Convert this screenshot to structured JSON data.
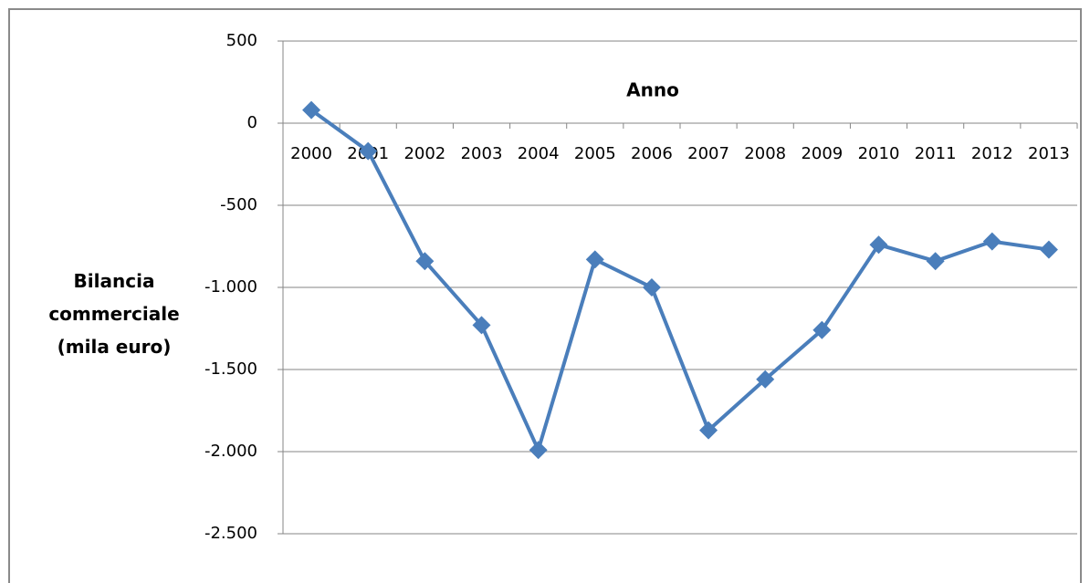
{
  "chart_data": {
    "type": "line",
    "x_label": "Anno",
    "y_label": "Bilancia commerciale (mila euro)",
    "categories": [
      "2000",
      "2001",
      "2002",
      "2003",
      "2004",
      "2005",
      "2006",
      "2007",
      "2008",
      "2009",
      "2010",
      "2011",
      "2012",
      "2013"
    ],
    "values": [
      80,
      -170,
      -840,
      -1230,
      -1990,
      -830,
      -1000,
      -1870,
      -1560,
      -1260,
      -740,
      -840,
      -720,
      -770
    ],
    "color": "#4a7ebb",
    "ylim": [
      -2500,
      500
    ],
    "yticks": [
      {
        "value": -2500,
        "label": "-2.500"
      },
      {
        "value": -2000,
        "label": "-2.000"
      },
      {
        "value": -1500,
        "label": "-1.500"
      },
      {
        "value": -1000,
        "label": "-1.000"
      },
      -500,
      0,
      500
    ],
    "grid": true
  }
}
